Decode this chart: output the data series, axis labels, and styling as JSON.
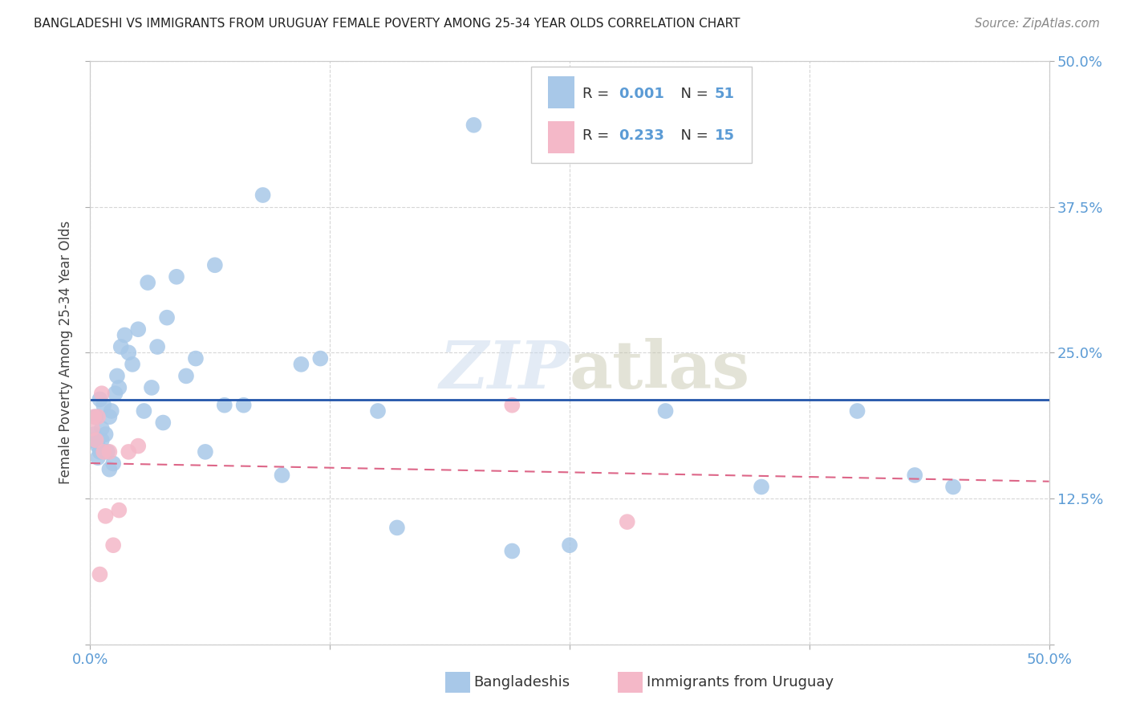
{
  "title": "BANGLADESHI VS IMMIGRANTS FROM URUGUAY FEMALE POVERTY AMONG 25-34 YEAR OLDS CORRELATION CHART",
  "source": "Source: ZipAtlas.com",
  "ylabel": "Female Poverty Among 25-34 Year Olds",
  "xlim": [
    0.0,
    0.5
  ],
  "ylim": [
    0.0,
    0.5
  ],
  "grid_color": "#cccccc",
  "background_color": "#ffffff",
  "blue_color": "#a8c8e8",
  "pink_color": "#f4b8c8",
  "line_blue_color": "#2255aa",
  "line_pink_color": "#dd6688",
  "tick_color": "#5b9bd5",
  "watermark": "ZIPatlas",
  "legend_label1": "Bangladeshis",
  "legend_label2": "Immigrants from Uruguay",
  "blue_x": [
    0.001,
    0.002,
    0.003,
    0.004,
    0.004,
    0.005,
    0.005,
    0.006,
    0.006,
    0.007,
    0.008,
    0.009,
    0.01,
    0.01,
    0.011,
    0.012,
    0.013,
    0.014,
    0.015,
    0.016,
    0.018,
    0.02,
    0.022,
    0.025,
    0.028,
    0.03,
    0.032,
    0.035,
    0.038,
    0.04,
    0.045,
    0.05,
    0.055,
    0.06,
    0.065,
    0.07,
    0.08,
    0.09,
    0.1,
    0.11,
    0.12,
    0.15,
    0.16,
    0.2,
    0.22,
    0.25,
    0.3,
    0.35,
    0.4,
    0.43,
    0.45
  ],
  "blue_y": [
    0.175,
    0.18,
    0.195,
    0.17,
    0.16,
    0.165,
    0.21,
    0.175,
    0.185,
    0.205,
    0.18,
    0.165,
    0.15,
    0.195,
    0.2,
    0.155,
    0.215,
    0.23,
    0.22,
    0.255,
    0.265,
    0.25,
    0.24,
    0.27,
    0.2,
    0.31,
    0.22,
    0.255,
    0.19,
    0.28,
    0.315,
    0.23,
    0.245,
    0.165,
    0.325,
    0.205,
    0.205,
    0.385,
    0.145,
    0.24,
    0.245,
    0.2,
    0.1,
    0.445,
    0.08,
    0.085,
    0.2,
    0.135,
    0.2,
    0.145,
    0.135
  ],
  "pink_x": [
    0.001,
    0.002,
    0.003,
    0.004,
    0.005,
    0.006,
    0.007,
    0.008,
    0.01,
    0.012,
    0.015,
    0.02,
    0.025,
    0.22,
    0.28
  ],
  "pink_y": [
    0.185,
    0.195,
    0.175,
    0.195,
    0.06,
    0.215,
    0.165,
    0.11,
    0.165,
    0.085,
    0.115,
    0.165,
    0.17,
    0.205,
    0.105
  ]
}
